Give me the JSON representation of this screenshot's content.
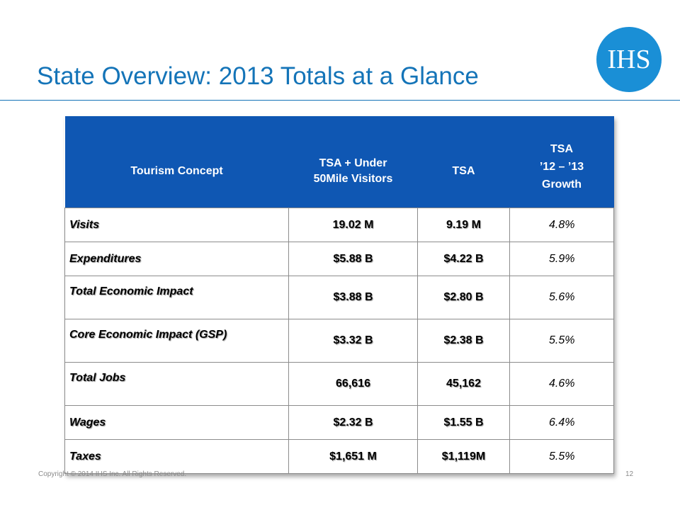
{
  "slide": {
    "title": "State Overview: 2013 Totals at a Glance",
    "logo_text": "IHS",
    "copyright": "Copyright © 2014 IHS Inc. All Rights Reserved.",
    "page_number": "12"
  },
  "colors": {
    "title": "#1474b8",
    "header_bg": "#0f57b3",
    "logo_bg": "#1a8fd6"
  },
  "table": {
    "headers": [
      "Tourism Concept",
      "TSA + Under\n50Mile Visitors",
      "TSA",
      "TSA\n’12 – ’13\nGrowth"
    ],
    "rows": [
      {
        "concept": "Visits",
        "tsa_under50": "19.02 M",
        "tsa": "9.19 M",
        "growth": "4.8%"
      },
      {
        "concept": "Expenditures",
        "tsa_under50": "$5.88 B",
        "tsa": "$4.22 B",
        "growth": "5.9%"
      },
      {
        "concept": "Total Economic Impact",
        "tsa_under50": "$3.88 B",
        "tsa": "$2.80 B",
        "growth": "5.6%"
      },
      {
        "concept": "Core Economic Impact (GSP)",
        "tsa_under50": "$3.32 B",
        "tsa": "$2.38 B",
        "growth": "5.5%"
      },
      {
        "concept": "Total Jobs",
        "tsa_under50": "66,616",
        "tsa": "45,162",
        "growth": "4.6%"
      },
      {
        "concept": "Wages",
        "tsa_under50": "$2.32 B",
        "tsa": "$1.55 B",
        "growth": "6.4%"
      },
      {
        "concept": "Taxes",
        "tsa_under50": "$1,651 M",
        "tsa": "$1,119M",
        "growth": "5.5%"
      }
    ]
  }
}
